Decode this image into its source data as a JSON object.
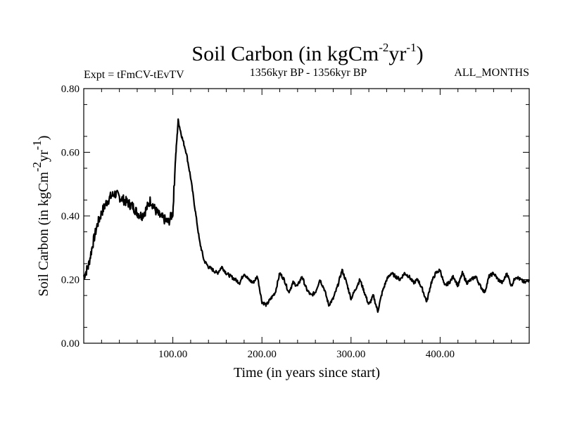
{
  "chart_data": {
    "type": "line",
    "title": "Soil Carbon (in kgCm-2yr-1)",
    "title_parts": {
      "base": "Soil Carbon (in kgCm",
      "exp1": "-2",
      "mid": "yr",
      "exp2": "-1",
      "end": ")"
    },
    "subtitle_left": "Expt = tFmCV-tEvTV",
    "subtitle_center": "1356kyr BP - 1356kyr BP",
    "subtitle_right": "ALL_MONTHS",
    "xlabel": "Time (in years since start)",
    "ylabel": "Soil Carbon (in kgCm-2yr-1)",
    "ylabel_parts": {
      "base": "Soil Carbon (in kgCm",
      "exp1": "-2",
      "mid": "yr",
      "exp2": "-1",
      "end": ")"
    },
    "xlim": [
      0,
      500
    ],
    "ylim": [
      0,
      0.8
    ],
    "xticks": [
      100,
      200,
      300,
      400
    ],
    "xtick_labels": [
      "100.00",
      "200.00",
      "300.00",
      "400.00"
    ],
    "yticks": [
      0,
      0.2,
      0.4,
      0.6,
      0.8
    ],
    "ytick_labels": [
      "0.00",
      "0.20",
      "0.40",
      "0.60",
      "0.80"
    ],
    "grid": false,
    "series": [
      {
        "name": "Soil Carbon",
        "color": "#000000",
        "x": [
          0,
          5,
          10,
          15,
          20,
          25,
          30,
          35,
          40,
          45,
          50,
          55,
          60,
          65,
          70,
          75,
          80,
          85,
          90,
          95,
          100,
          103,
          106,
          110,
          115,
          120,
          125,
          130,
          135,
          140,
          145,
          150,
          155,
          160,
          165,
          170,
          175,
          180,
          185,
          190,
          195,
          200,
          205,
          210,
          215,
          220,
          225,
          230,
          235,
          240,
          245,
          250,
          255,
          260,
          265,
          270,
          275,
          280,
          285,
          290,
          295,
          300,
          305,
          310,
          315,
          320,
          325,
          330,
          335,
          340,
          345,
          350,
          355,
          360,
          365,
          370,
          375,
          380,
          385,
          390,
          395,
          400,
          405,
          410,
          415,
          420,
          425,
          430,
          435,
          440,
          445,
          450,
          455,
          460,
          465,
          470,
          475,
          480,
          485,
          490,
          495,
          500
        ],
        "y": [
          0.21,
          0.24,
          0.31,
          0.37,
          0.41,
          0.44,
          0.46,
          0.47,
          0.46,
          0.45,
          0.44,
          0.43,
          0.41,
          0.4,
          0.42,
          0.45,
          0.42,
          0.4,
          0.39,
          0.38,
          0.41,
          0.58,
          0.7,
          0.65,
          0.6,
          0.52,
          0.42,
          0.32,
          0.26,
          0.24,
          0.23,
          0.22,
          0.24,
          0.22,
          0.21,
          0.2,
          0.19,
          0.22,
          0.2,
          0.19,
          0.21,
          0.13,
          0.12,
          0.14,
          0.16,
          0.22,
          0.2,
          0.16,
          0.19,
          0.18,
          0.21,
          0.17,
          0.15,
          0.16,
          0.2,
          0.17,
          0.12,
          0.14,
          0.18,
          0.23,
          0.19,
          0.14,
          0.17,
          0.2,
          0.16,
          0.12,
          0.15,
          0.1,
          0.16,
          0.2,
          0.22,
          0.21,
          0.2,
          0.22,
          0.21,
          0.19,
          0.2,
          0.17,
          0.13,
          0.19,
          0.22,
          0.23,
          0.18,
          0.19,
          0.21,
          0.18,
          0.22,
          0.19,
          0.2,
          0.21,
          0.18,
          0.16,
          0.21,
          0.22,
          0.2,
          0.19,
          0.22,
          0.18,
          0.21,
          0.2,
          0.19,
          0.2
        ]
      }
    ]
  }
}
